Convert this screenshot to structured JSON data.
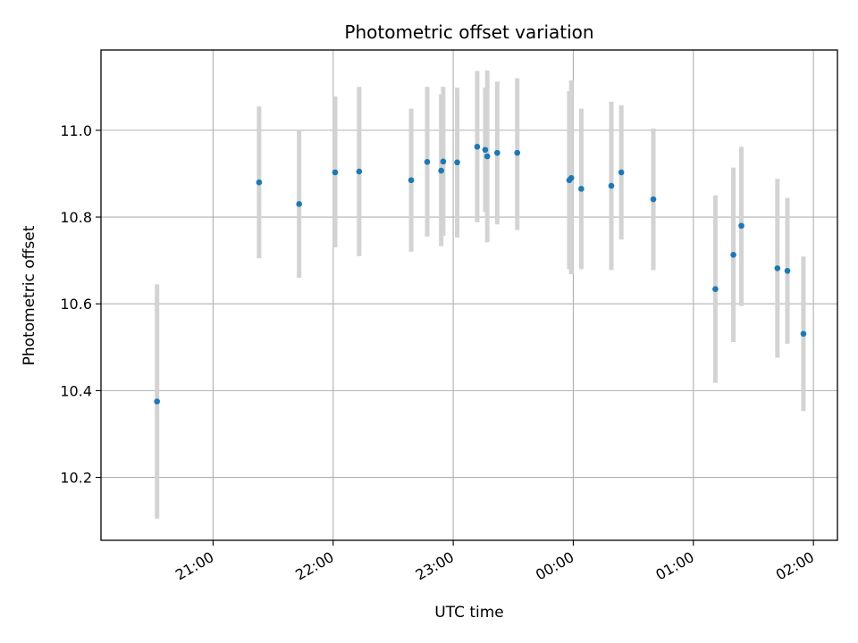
{
  "chart_data": {
    "type": "scatter",
    "title": "Photometric offset variation",
    "xlabel": "UTC time",
    "ylabel": "Photometric offset",
    "x_tick_labels": [
      "21:00",
      "22:00",
      "23:00",
      "00:00",
      "01:00",
      "02:00"
    ],
    "y_tick_labels": [
      "10.2",
      "10.4",
      "10.6",
      "10.8",
      "11.0"
    ],
    "y_ticks": [
      10.2,
      10.4,
      10.6,
      10.8,
      11.0
    ],
    "xlim": [
      "20:04",
      "02:12"
    ],
    "ylim": [
      10.055,
      11.185
    ],
    "grid": true,
    "colors": {
      "point": "#1f77b4",
      "errorbar": "#d3d3d3",
      "grid": "#b0b0b0"
    },
    "points": [
      {
        "t": "20:32",
        "y": 10.375,
        "lo": 10.105,
        "hi": 10.645
      },
      {
        "t": "21:23",
        "y": 10.88,
        "lo": 10.705,
        "hi": 11.055
      },
      {
        "t": "21:43",
        "y": 10.83,
        "lo": 10.66,
        "hi": 11.0
      },
      {
        "t": "22:01",
        "y": 10.903,
        "lo": 10.73,
        "hi": 11.078
      },
      {
        "t": "22:13",
        "y": 10.905,
        "lo": 10.71,
        "hi": 11.1
      },
      {
        "t": "22:39",
        "y": 10.885,
        "lo": 10.72,
        "hi": 11.05
      },
      {
        "t": "22:47",
        "y": 10.927,
        "lo": 10.755,
        "hi": 11.1
      },
      {
        "t": "22:54",
        "y": 10.907,
        "lo": 10.733,
        "hi": 11.083
      },
      {
        "t": "22:55",
        "y": 10.928,
        "lo": 10.757,
        "hi": 11.1
      },
      {
        "t": "23:02",
        "y": 10.926,
        "lo": 10.753,
        "hi": 11.098
      },
      {
        "t": "23:12",
        "y": 10.962,
        "lo": 10.788,
        "hi": 11.137
      },
      {
        "t": "23:16",
        "y": 10.955,
        "lo": 10.812,
        "hi": 11.098
      },
      {
        "t": "23:17",
        "y": 10.94,
        "lo": 10.742,
        "hi": 11.138
      },
      {
        "t": "23:22",
        "y": 10.948,
        "lo": 10.783,
        "hi": 11.112
      },
      {
        "t": "23:32",
        "y": 10.948,
        "lo": 10.77,
        "hi": 11.12
      },
      {
        "t": "23:58",
        "y": 10.885,
        "lo": 10.68,
        "hi": 11.09
      },
      {
        "t": "23:59",
        "y": 10.89,
        "lo": 10.668,
        "hi": 11.115
      },
      {
        "t": "00:04",
        "y": 10.865,
        "lo": 10.68,
        "hi": 11.05
      },
      {
        "t": "00:19",
        "y": 10.872,
        "lo": 10.678,
        "hi": 11.066
      },
      {
        "t": "00:24",
        "y": 10.903,
        "lo": 10.748,
        "hi": 11.058
      },
      {
        "t": "00:40",
        "y": 10.841,
        "lo": 10.678,
        "hi": 11.004
      },
      {
        "t": "01:11",
        "y": 10.634,
        "lo": 10.418,
        "hi": 10.85
      },
      {
        "t": "01:20",
        "y": 10.713,
        "lo": 10.512,
        "hi": 10.914
      },
      {
        "t": "01:24",
        "y": 10.78,
        "lo": 10.595,
        "hi": 10.962
      },
      {
        "t": "01:42",
        "y": 10.682,
        "lo": 10.476,
        "hi": 10.888
      },
      {
        "t": "01:47",
        "y": 10.676,
        "lo": 10.508,
        "hi": 10.844
      },
      {
        "t": "01:55",
        "y": 10.531,
        "lo": 10.353,
        "hi": 10.709
      }
    ]
  }
}
